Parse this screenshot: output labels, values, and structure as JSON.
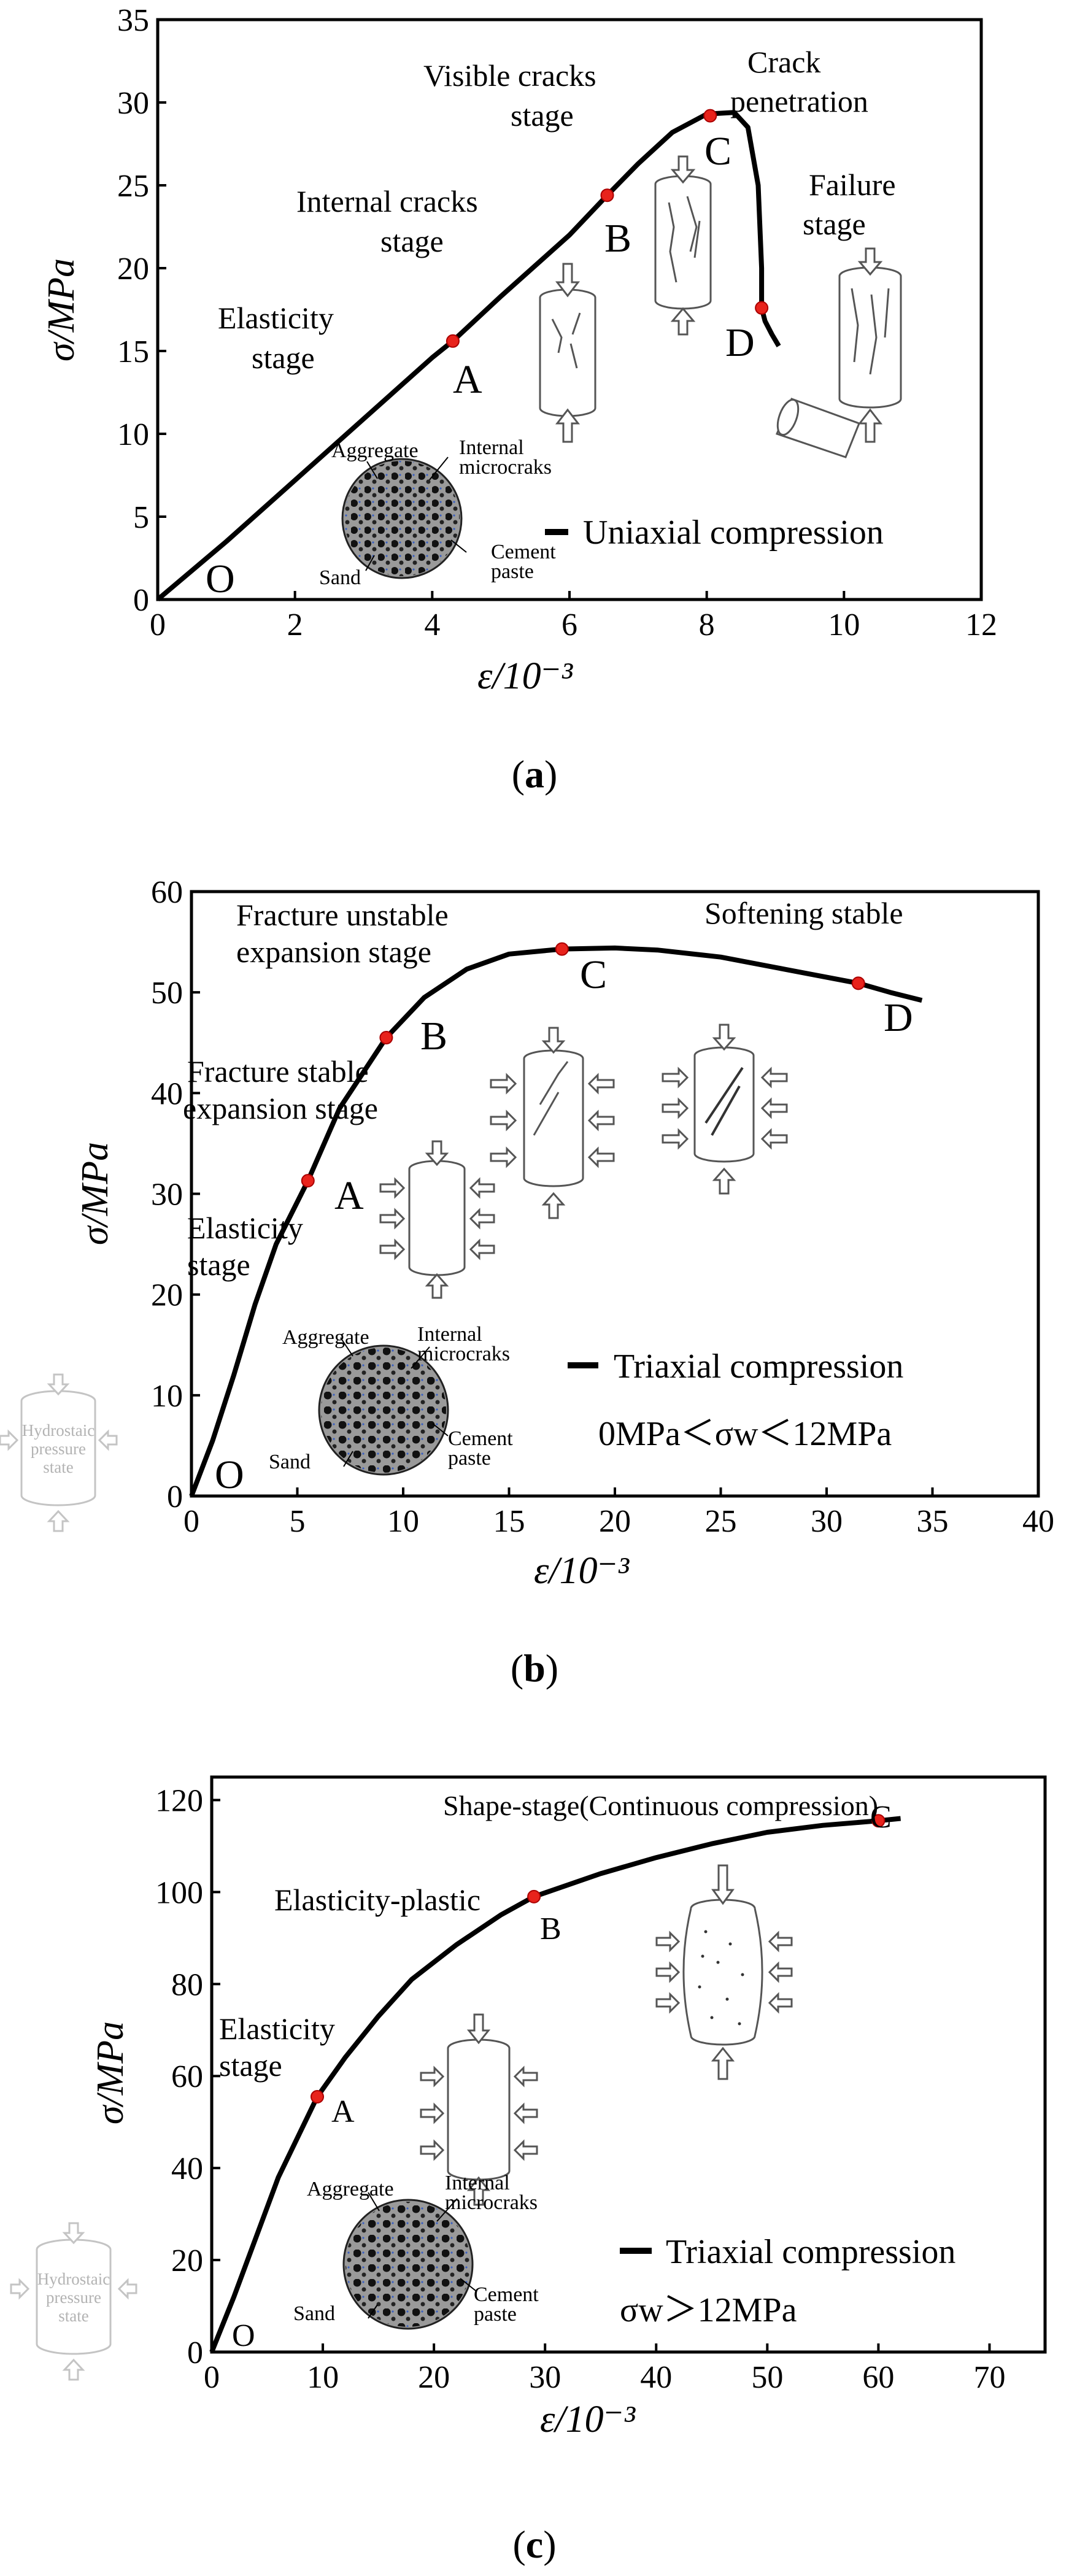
{
  "chart_data": [
    {
      "type": "line",
      "panel": "(a)",
      "caption_letter": "a",
      "xlabel": "ε/10⁻³",
      "ylabel": "σ/MPa",
      "xlim": [
        0,
        12
      ],
      "ylim": [
        0,
        35
      ],
      "xticks": [
        "0",
        "2",
        "4",
        "6",
        "8",
        "10",
        "12"
      ],
      "yticks": [
        "0",
        "5",
        "10",
        "15",
        "20",
        "25",
        "30",
        "35"
      ],
      "grid": false,
      "legend": "Uniaxial compression",
      "series": [
        {
          "name": "Uniaxial compression",
          "x": [
            0,
            1,
            2,
            3,
            4,
            4.3,
            5,
            6,
            6.55,
            7,
            7.5,
            8.0,
            8.4,
            8.6,
            8.75,
            8.8,
            8.8,
            8.85,
            8.95,
            9.05
          ],
          "y": [
            0,
            3.5,
            7.2,
            10.9,
            14.6,
            15.6,
            18.3,
            22.0,
            24.4,
            26.3,
            28.2,
            29.3,
            29.4,
            28.5,
            25.0,
            20.0,
            17.6,
            16.8,
            16.0,
            15.3
          ]
        }
      ],
      "points": [
        {
          "label": "O",
          "x": 0,
          "y": 0,
          "marked": false
        },
        {
          "label": "A",
          "x": 4.3,
          "y": 15.6,
          "marked": true
        },
        {
          "label": "B",
          "x": 6.55,
          "y": 24.4,
          "marked": true
        },
        {
          "label": "C",
          "x": 8.05,
          "y": 29.2,
          "marked": true
        },
        {
          "label": "D",
          "x": 8.8,
          "y": 17.6,
          "marked": true
        }
      ],
      "annotations": [
        {
          "lines": [
            "Visible cracks",
            "stage"
          ]
        },
        {
          "lines": [
            "Crack",
            "penetration"
          ]
        },
        {
          "lines": [
            "Internal cracks",
            "stage"
          ]
        },
        {
          "lines": [
            "Failure",
            "stage"
          ]
        },
        {
          "lines": [
            "Elasticity",
            "stage"
          ]
        }
      ],
      "micro_labels": [
        "Aggregate",
        "Internal",
        "microcraks",
        "Sand",
        "Cement",
        "paste"
      ]
    },
    {
      "type": "line",
      "panel": "(b)",
      "caption_letter": "b",
      "xlabel": "ε/10⁻³",
      "ylabel": "σ/MPa",
      "xlim": [
        0,
        40
      ],
      "ylim": [
        0,
        60
      ],
      "xticks": [
        "0",
        "5",
        "10",
        "15",
        "20",
        "25",
        "30",
        "35",
        "40"
      ],
      "yticks": [
        "0",
        "10",
        "20",
        "30",
        "40",
        "50",
        "60"
      ],
      "grid": false,
      "legend": "Triaxial compression",
      "condition": "0MPa＜σw＜12MPa",
      "series": [
        {
          "name": "Triaxial compression",
          "x": [
            0,
            1,
            2,
            3,
            4,
            5.5,
            7,
            9.2,
            11,
            13,
            15,
            17.5,
            20,
            22,
            25,
            28,
            31.5,
            33,
            34.5
          ],
          "y": [
            0,
            5.5,
            12,
            19,
            25,
            31.3,
            38.5,
            45.5,
            49.5,
            52.3,
            53.8,
            54.3,
            54.4,
            54.2,
            53.5,
            52.3,
            50.9,
            50.0,
            49.2
          ]
        }
      ],
      "points": [
        {
          "label": "O",
          "x": 0,
          "y": 0,
          "marked": false
        },
        {
          "label": "A",
          "x": 5.5,
          "y": 31.3,
          "marked": true
        },
        {
          "label": "B",
          "x": 9.2,
          "y": 45.5,
          "marked": true
        },
        {
          "label": "C",
          "x": 17.5,
          "y": 54.3,
          "marked": true
        },
        {
          "label": "D",
          "x": 31.5,
          "y": 50.9,
          "marked": true
        }
      ],
      "annotations": [
        {
          "lines": [
            "Fracture unstable",
            "expansion stage"
          ]
        },
        {
          "lines": [
            "Softening stable"
          ]
        },
        {
          "lines": [
            "Fracture stable",
            "expansion stage"
          ]
        },
        {
          "lines": [
            "Elasticity",
            "stage"
          ]
        }
      ],
      "micro_labels": [
        "Aggregate",
        "Internal",
        "microcraks",
        "Sand",
        "Cement",
        "paste"
      ],
      "hydro_labels": [
        "Hydrostaic",
        "pressure",
        "state"
      ]
    },
    {
      "type": "line",
      "panel": "(c)",
      "caption_letter": "c",
      "xlabel": "ε/10⁻³",
      "ylabel": "σ/MPa",
      "xlim": [
        0,
        75
      ],
      "ylim": [
        0,
        125
      ],
      "xticks": [
        "0",
        "10",
        "20",
        "30",
        "40",
        "50",
        "60",
        "70"
      ],
      "yticks": [
        "0",
        "20",
        "40",
        "60",
        "80",
        "100",
        "120"
      ],
      "grid": false,
      "legend": "Triaxial compression",
      "condition": "σw＞12MPa",
      "series": [
        {
          "name": "Triaxial compression",
          "x": [
            0,
            2,
            4,
            6,
            9.5,
            12,
            15,
            18,
            22,
            26,
            29,
            35,
            40,
            45,
            50,
            55,
            60,
            62
          ],
          "y": [
            0,
            12,
            25,
            38,
            55.5,
            64,
            73,
            81,
            88.5,
            95,
            99,
            104,
            107.5,
            110.5,
            113,
            114.5,
            115.5,
            116
          ]
        }
      ],
      "points": [
        {
          "label": "O",
          "x": 0,
          "y": 0,
          "marked": false
        },
        {
          "label": "A",
          "x": 9.5,
          "y": 55.5,
          "marked": true
        },
        {
          "label": "B",
          "x": 29,
          "y": 99,
          "marked": true
        },
        {
          "label": "C",
          "x": 60,
          "y": 115.5,
          "marked": true
        }
      ],
      "annotations": [
        {
          "lines": [
            "Shape-stage(Continuous compression)"
          ]
        },
        {
          "lines": [
            "Elasticity-plastic"
          ]
        },
        {
          "lines": [
            "Elasticity",
            "stage"
          ]
        }
      ],
      "micro_labels": [
        "Aggregate",
        "Internal",
        "microcraks",
        "Sand",
        "Cement",
        "paste"
      ],
      "hydro_labels": [
        "Hydrostaic",
        "pressure",
        "state"
      ]
    }
  ]
}
